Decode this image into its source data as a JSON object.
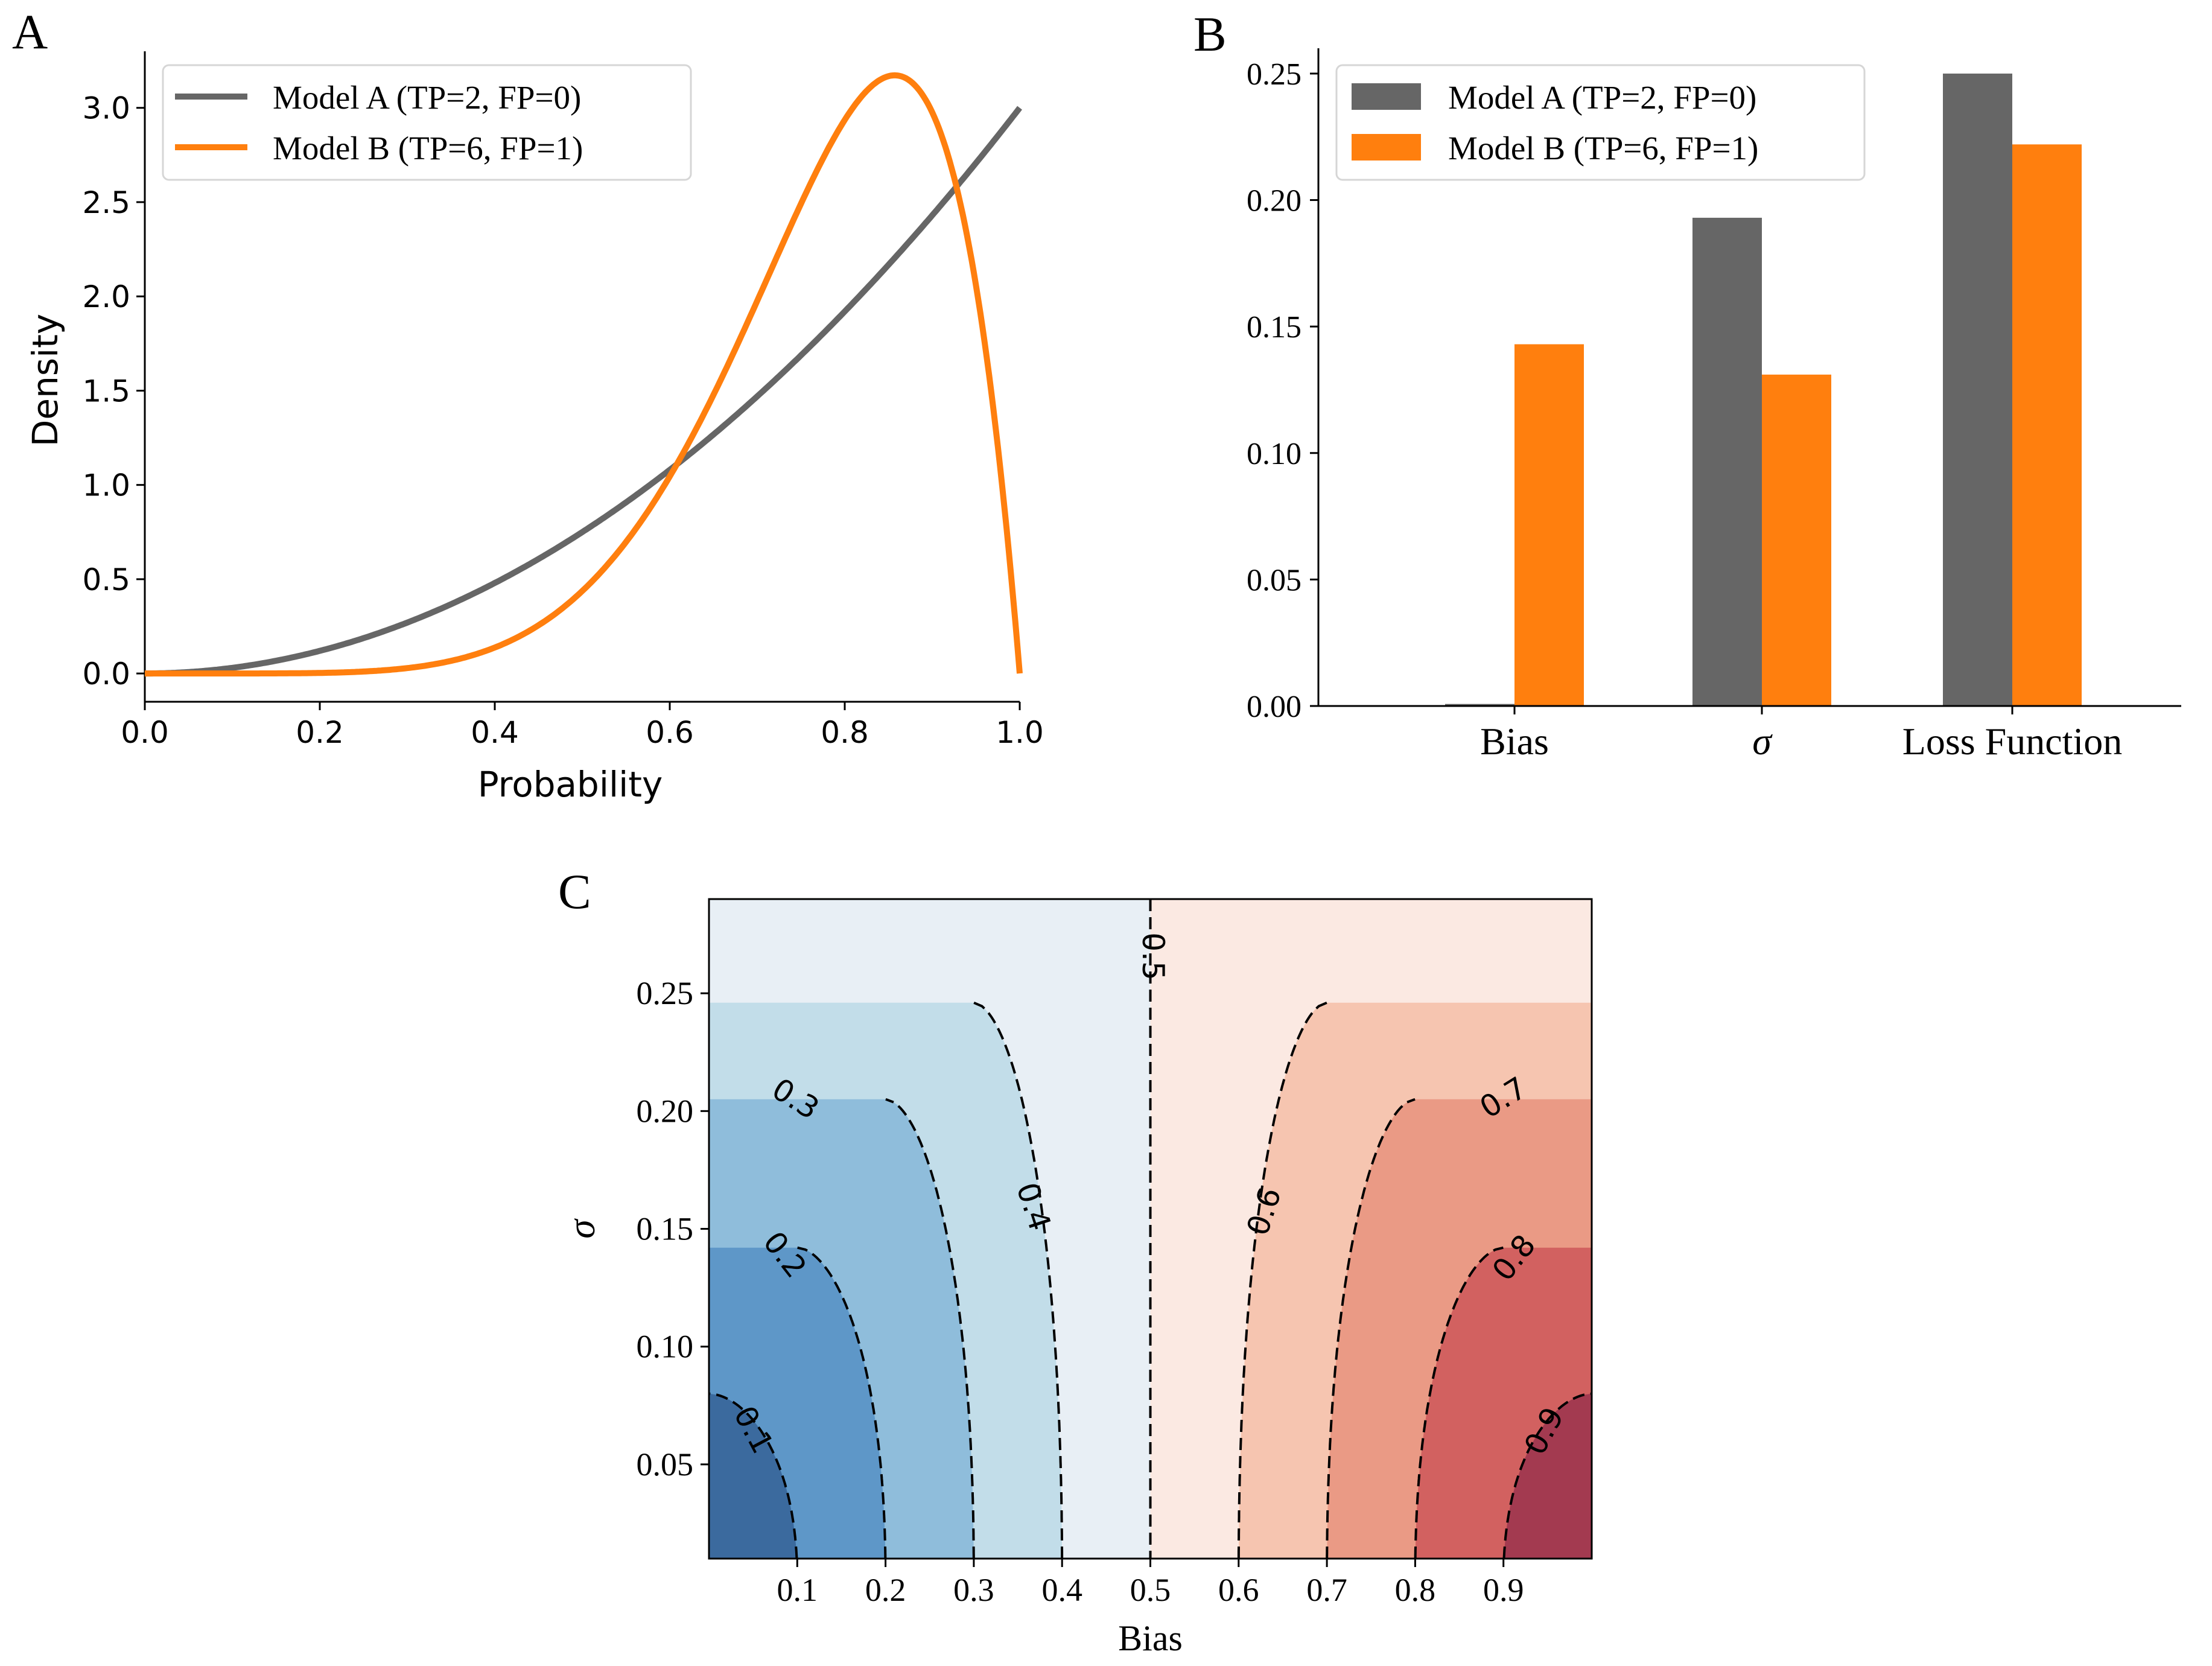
{
  "chart_data": [
    {
      "panel": "A",
      "type": "line",
      "xlabel": "Probability",
      "ylabel": "Density",
      "xlim": [
        0,
        1
      ],
      "ylim": [
        -0.15,
        3.3
      ],
      "xticks": [
        "0.0",
        "0.2",
        "0.4",
        "0.6",
        "0.8",
        "1.0"
      ],
      "yticks": [
        "0.0",
        "0.5",
        "1.0",
        "1.5",
        "2.0",
        "2.5",
        "3.0"
      ],
      "legend_position": "top-left",
      "series": [
        {
          "name": "Model A (TP=2, FP=0)",
          "color": "#666666",
          "distribution": "beta",
          "alpha": 3,
          "beta": 1
        },
        {
          "name": "Model B (TP=6, FP=1)",
          "color": "#ff7f0e",
          "distribution": "beta",
          "alpha": 7,
          "beta": 2
        }
      ]
    },
    {
      "panel": "B",
      "type": "bar",
      "categories": [
        "Bias",
        "σ",
        "Loss Function"
      ],
      "ylim": [
        0,
        0.26
      ],
      "yticks": [
        "0.00",
        "0.05",
        "0.10",
        "0.15",
        "0.20",
        "0.25"
      ],
      "legend_position": "top-left",
      "series": [
        {
          "name": "Model A (TP=2, FP=0)",
          "color": "#666666",
          "values": [
            0.0008,
            0.193,
            0.25
          ]
        },
        {
          "name": "Model B (TP=6, FP=1)",
          "color": "#ff7f0e",
          "values": [
            0.143,
            0.131,
            0.222
          ]
        }
      ]
    },
    {
      "panel": "C",
      "type": "contour",
      "xlabel": "Bias",
      "ylabel": "σ",
      "xlim": [
        0,
        1
      ],
      "ylim": [
        0.01,
        0.29
      ],
      "xticks": [
        "0.1",
        "0.2",
        "0.3",
        "0.4",
        "0.5",
        "0.6",
        "0.7",
        "0.8",
        "0.9"
      ],
      "yticks": [
        "0.05",
        "0.10",
        "0.15",
        "0.20",
        "0.25"
      ],
      "levels": [
        0.1,
        0.2,
        0.3,
        0.4,
        0.5,
        0.6,
        0.7,
        0.8,
        0.9
      ],
      "level_labels": [
        "0.1",
        "0.2",
        "0.3",
        "0.4",
        "0.5",
        "0.6",
        "0.7",
        "0.8",
        "0.9"
      ],
      "band_colors": [
        "#3b6a9e",
        "#5e97c8",
        "#8fbddb",
        "#c2dde9",
        "#e8eff5",
        "#fbe9e2",
        "#f6c5b0",
        "#ea9a85",
        "#d26160",
        "#a33a50"
      ]
    }
  ]
}
